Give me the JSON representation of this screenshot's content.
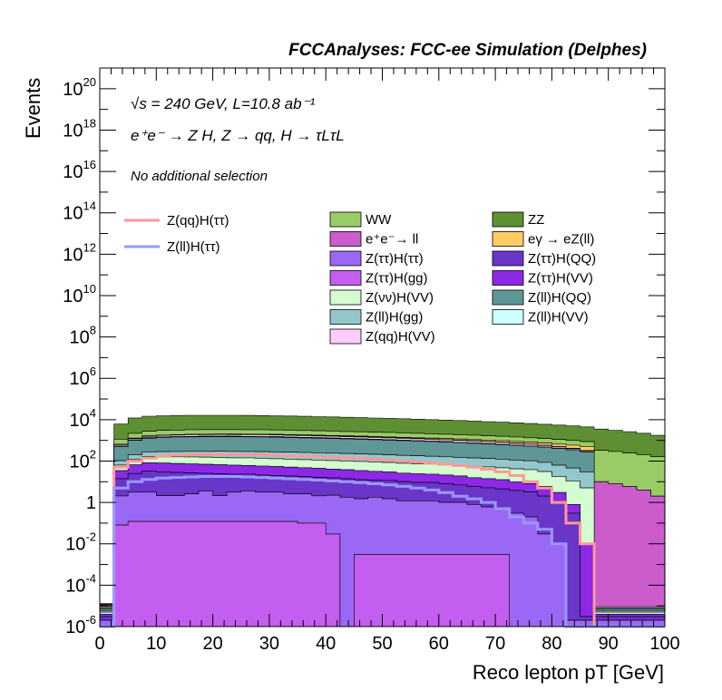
{
  "chart_data": {
    "type": "histogram",
    "title": "FCCAnalyses: FCC-ee Simulation (Delphes)",
    "annotations": {
      "energy": "√s = 240 GeV, L=10.8 ab⁻¹",
      "process": "e⁺e⁻ → Z H, Z → qq, H → τLτL",
      "selection": "No additional selection"
    },
    "xlabel": "Reco lepton pT [GeV]",
    "ylabel": "Events",
    "xlim": [
      0,
      100
    ],
    "ylim": [
      1e-06,
      1e+21
    ],
    "yscale": "log",
    "x_ticks": [
      "0",
      "10",
      "20",
      "30",
      "40",
      "50",
      "60",
      "70",
      "80",
      "90",
      "100"
    ],
    "y_ticks": [
      {
        "base": "10",
        "exp": "-6",
        "value": 1e-06
      },
      {
        "base": "10",
        "exp": "-4",
        "value": 0.0001
      },
      {
        "base": "10",
        "exp": "-2",
        "value": 0.01
      },
      {
        "base": "1",
        "exp": "",
        "value": 1
      },
      {
        "base": "10",
        "exp": "2",
        "value": 100.0
      },
      {
        "base": "10",
        "exp": "4",
        "value": 10000.0
      },
      {
        "base": "10",
        "exp": "6",
        "value": 1000000.0
      },
      {
        "base": "10",
        "exp": "8",
        "value": 100000000.0
      },
      {
        "base": "10",
        "exp": "10",
        "value": 10000000000.0
      },
      {
        "base": "10",
        "exp": "12",
        "value": 1000000000000.0
      },
      {
        "base": "10",
        "exp": "14",
        "value": 100000000000000.0
      },
      {
        "base": "10",
        "exp": "16",
        "value": 1e+16
      },
      {
        "base": "10",
        "exp": "18",
        "value": 1e+18
      },
      {
        "base": "10",
        "exp": "20",
        "value": 1e+20
      }
    ],
    "bin_edges": [
      0,
      2.5,
      5,
      7.5,
      10,
      12.5,
      15,
      17.5,
      20,
      22.5,
      25,
      27.5,
      30,
      32.5,
      35,
      37.5,
      40,
      42.5,
      45,
      47.5,
      50,
      52.5,
      55,
      57.5,
      60,
      62.5,
      65,
      67.5,
      70,
      72.5,
      75,
      77.5,
      80,
      82.5,
      85,
      87.5,
      90,
      92.5,
      95,
      97.5,
      100
    ],
    "stack_order_bottom_to_top": [
      "Z(ττ)H(gg)",
      "Z(ττ)H(ττ)",
      "Z(ττ)H(QQ)",
      "Z(ττ)H(VV)",
      "Z(νν)H(VV)",
      "Z(ll)H(gg)",
      "Z(ll)H(QQ)",
      "Z(ll)H(VV)",
      "Z(qq)H(VV)",
      "e⁺e⁻→ ll",
      "eγ → eZ(ll)",
      "WW",
      "ZZ"
    ],
    "stacked_series": [
      {
        "name": "Z(ττ)H(gg)",
        "color": "#c45ef0",
        "values": [
          1e-06,
          0.08,
          0.12,
          0.12,
          0.12,
          0.12,
          0.12,
          0.12,
          0.12,
          0.12,
          0.12,
          0.12,
          0.12,
          0.12,
          0.1,
          0.1,
          0.03,
          1e-06,
          0.003,
          0.003,
          0.003,
          0.003,
          0.003,
          0.003,
          0.003,
          0.003,
          0.003,
          0.003,
          0.003,
          1e-06,
          1e-06,
          1e-06,
          1e-06,
          1e-06,
          1e-06,
          1e-06,
          1e-06,
          1e-06,
          1e-06,
          1e-06
        ]
      },
      {
        "name": "Z(ττ)H(ττ)",
        "color": "#9b68f5",
        "values": [
          1e-06,
          2,
          3,
          3,
          2,
          2,
          2.5,
          3.5,
          2,
          3,
          3.5,
          3,
          3,
          2.5,
          2.5,
          2,
          2.2,
          1.8,
          1.5,
          1.8,
          1.5,
          1.2,
          1.2,
          1.2,
          1,
          1,
          0.8,
          0.6,
          0.5,
          0.3,
          0.2,
          0.03,
          0.01,
          1e-06,
          1e-06,
          1e-06,
          1e-06,
          1e-06,
          1e-06,
          1e-06
        ]
      },
      {
        "name": "Z(ττ)H(QQ)",
        "color": "#6a35c9",
        "values": [
          1e-06,
          12,
          22,
          30,
          28,
          26,
          24,
          22,
          22,
          20,
          20,
          18,
          17,
          16,
          15,
          14,
          13,
          12,
          11,
          10,
          10,
          9,
          8,
          8,
          7,
          6,
          5,
          4.5,
          4,
          3.5,
          3,
          2,
          1,
          0.3,
          1e-06,
          1e-06,
          1e-06,
          1e-06,
          1e-06,
          1e-06
        ]
      },
      {
        "name": "Z(ττ)H(VV)",
        "color": "#8c28e6",
        "values": [
          1e-06,
          20,
          40,
          50,
          50,
          48,
          46,
          44,
          42,
          40,
          38,
          36,
          34,
          32,
          30,
          28,
          26,
          24,
          22,
          20,
          18,
          16,
          15,
          14,
          13,
          12,
          10,
          9,
          8,
          6,
          5,
          4,
          2,
          0.5,
          0.01,
          1e-06,
          1e-06,
          1e-06,
          1e-06,
          1e-06
        ]
      },
      {
        "name": "Z(νν)H(VV)",
        "color": "#d4fcd0",
        "values": [
          1e-06,
          30,
          60,
          80,
          85,
          85,
          85,
          85,
          85,
          80,
          80,
          78,
          75,
          72,
          70,
          68,
          65,
          62,
          60,
          58,
          55,
          52,
          50,
          48,
          45,
          42,
          40,
          38,
          35,
          32,
          30,
          25,
          15,
          10,
          5,
          1e-06,
          1e-06,
          1e-06,
          1e-06,
          1e-06
        ]
      },
      {
        "name": "Z(ll)H(gg)",
        "color": "#93c7cc",
        "values": [
          1e-06,
          40,
          80,
          110,
          120,
          130,
          135,
          140,
          145,
          150,
          150,
          150,
          148,
          145,
          142,
          140,
          135,
          130,
          125,
          120,
          115,
          110,
          105,
          100,
          95,
          90,
          85,
          80,
          75,
          70,
          65,
          55,
          45,
          35,
          25,
          1e-06,
          1e-06,
          1e-06,
          1e-06,
          1e-06
        ]
      },
      {
        "name": "Z(ll)H(QQ)",
        "color": "#5f9797",
        "values": [
          1e-06,
          400,
          800,
          1000,
          1100,
          1150,
          1180,
          1200,
          1200,
          1200,
          1180,
          1160,
          1140,
          1100,
          1060,
          1020,
          980,
          940,
          900,
          860,
          820,
          780,
          740,
          700,
          660,
          620,
          580,
          540,
          500,
          460,
          420,
          380,
          340,
          300,
          250,
          1e-06,
          1e-06,
          1e-06,
          1e-06,
          1e-06
        ]
      },
      {
        "name": "Z(ll)H(VV)",
        "color": "#ccffff",
        "values": [
          1e-06,
          30,
          60,
          80,
          85,
          85,
          85,
          85,
          85,
          85,
          85,
          85,
          85,
          85,
          85,
          80,
          80,
          75,
          70,
          65,
          60,
          55,
          50,
          45,
          40,
          35,
          30,
          25,
          20,
          15,
          10,
          8,
          6,
          4,
          2,
          1e-06,
          1e-06,
          1e-06,
          1e-06,
          1e-06
        ]
      },
      {
        "name": "Z(qq)H(VV)",
        "color": "#ffccff",
        "values": [
          1e-06,
          80,
          160,
          220,
          260,
          290,
          310,
          320,
          330,
          330,
          330,
          325,
          320,
          310,
          300,
          290,
          280,
          270,
          260,
          250,
          240,
          230,
          220,
          210,
          200,
          190,
          180,
          170,
          150,
          130,
          110,
          90,
          70,
          50,
          30,
          1e-06,
          1e-06,
          1e-06,
          1e-06,
          1e-06
        ]
      },
      {
        "name": "e⁺e⁻→ ll",
        "color": "#cc5ccc",
        "values": [
          1e-06,
          20,
          40,
          50,
          55,
          60,
          60,
          60,
          60,
          60,
          60,
          60,
          58,
          56,
          54,
          52,
          50,
          48,
          46,
          44,
          42,
          40,
          38,
          36,
          34,
          32,
          30,
          28,
          26,
          24,
          22,
          20,
          18,
          16,
          14,
          10,
          8,
          6,
          4,
          2
        ]
      },
      {
        "name": "eγ → eZ(ll)",
        "color": "#ffcc66",
        "values": [
          1e-06,
          10,
          15,
          20,
          25,
          30,
          35,
          40,
          45,
          50,
          55,
          60,
          65,
          70,
          75,
          80,
          85,
          90,
          95,
          100,
          105,
          110,
          115,
          120,
          125,
          130,
          135,
          140,
          145,
          150,
          155,
          160,
          165,
          170,
          175,
          0.1,
          0.01,
          0.001,
          0.0001,
          1e-06
        ]
      },
      {
        "name": "WW",
        "color": "#99cc66",
        "values": [
          1e-06,
          500,
          900,
          1100,
          1200,
          1250,
          1280,
          1300,
          1300,
          1300,
          1280,
          1260,
          1240,
          1200,
          1160,
          1120,
          1080,
          1040,
          1000,
          960,
          920,
          880,
          840,
          800,
          760,
          720,
          680,
          640,
          600,
          560,
          520,
          480,
          440,
          400,
          360,
          320,
          280,
          240,
          200,
          160
        ]
      },
      {
        "name": "ZZ",
        "color": "#5f8f33",
        "values": [
          1e-06,
          5000,
          10000,
          12000,
          12500,
          12800,
          13000,
          13000,
          13000,
          13000,
          12800,
          12600,
          12400,
          12000,
          11600,
          11200,
          10800,
          10400,
          10000,
          9600,
          9200,
          8800,
          8400,
          8000,
          7600,
          7200,
          6800,
          6400,
          6000,
          5600,
          5200,
          4800,
          4400,
          4000,
          3600,
          3200,
          2800,
          2400,
          2000,
          1600
        ]
      }
    ],
    "line_series": [
      {
        "name": "Z(qq)H(ττ)",
        "color": "#ff9999",
        "values": [
          1e-06,
          50,
          100,
          140,
          170,
          190,
          200,
          210,
          210,
          210,
          205,
          200,
          190,
          180,
          170,
          160,
          150,
          140,
          130,
          120,
          110,
          100,
          90,
          80,
          70,
          60,
          50,
          40,
          30,
          20,
          10,
          5,
          1,
          0.1,
          0.01,
          1e-06,
          1e-06,
          1e-06,
          1e-06,
          1e-06
        ]
      },
      {
        "name": "Z(ll)H(ττ)",
        "color": "#9999ff",
        "values": [
          1e-06,
          5,
          10,
          13,
          15,
          16,
          17,
          18,
          18,
          18,
          17,
          16,
          15,
          14,
          13,
          12,
          11,
          10,
          9,
          8,
          7,
          6,
          5,
          4,
          3,
          2,
          1.5,
          1,
          0.5,
          0.2,
          0.1,
          0.05,
          0.01,
          1e-06,
          1e-06,
          1e-06,
          1e-06,
          1e-06,
          1e-06,
          1e-06
        ]
      }
    ],
    "legend": {
      "left_column": [
        "Z(qq)H(ττ)",
        "Z(ll)H(ττ)"
      ],
      "col1": [
        "WW",
        "e⁺e⁻→ ll",
        "Z(ττ)H(ττ)",
        "Z(ττ)H(gg)",
        "Z(νν)H(VV)",
        "Z(ll)H(gg)",
        "Z(qq)H(VV)"
      ],
      "col2": [
        "ZZ",
        "eγ → eZ(ll)",
        "Z(ττ)H(QQ)",
        "Z(ττ)H(VV)",
        "Z(ll)H(QQ)",
        "Z(ll)H(VV)"
      ]
    }
  }
}
